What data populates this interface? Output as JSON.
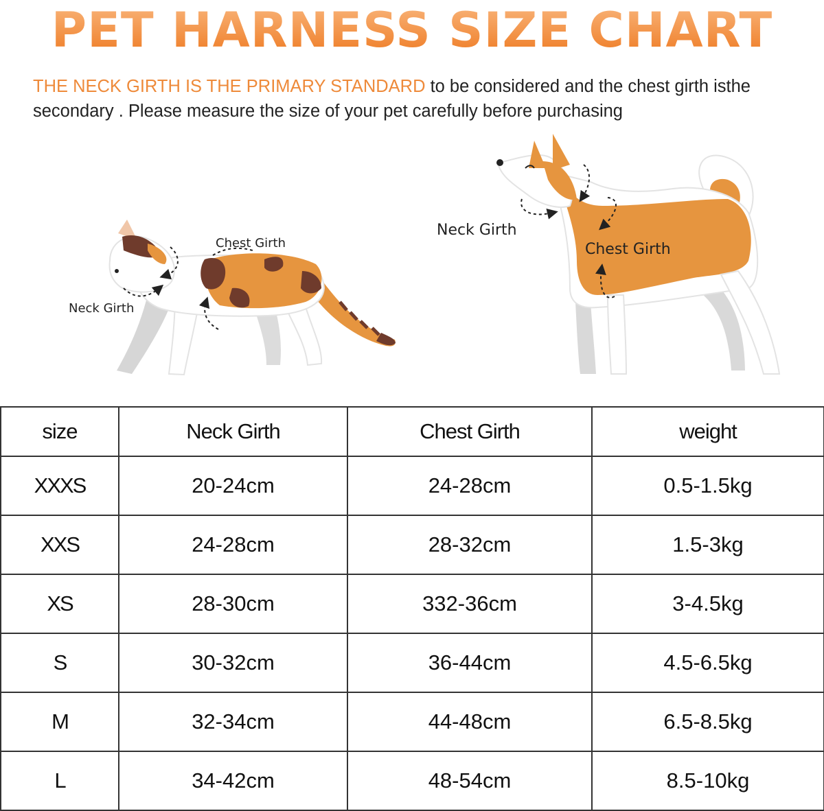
{
  "title": "PET HARNESS SIZE CHART",
  "subtitle": {
    "highlight": "THE NECK GIRTH IS THE PRIMARY STANDARD",
    "rest": " to be considered and the chest girth isthe secondary . Please measure the size of your pet carefully before purchasing"
  },
  "illustration": {
    "cat_labels": {
      "neck": "Neck  Girth",
      "chest": "Chest Girth"
    },
    "dog_labels": {
      "neck": "Neck  Girth",
      "chest": "Chest Girth"
    },
    "colors": {
      "orange": "#e6953f",
      "brown": "#6f3b2c",
      "white": "#ffffff",
      "shadow": "#d9d9d9"
    }
  },
  "table": {
    "headers": [
      "size",
      "Neck Girth",
      "Chest Girth",
      "weight"
    ],
    "rows": [
      [
        "XXXS",
        "20-24cm",
        "24-28cm",
        "0.5-1.5kg"
      ],
      [
        "XXS",
        "24-28cm",
        "28-32cm",
        "1.5-3kg"
      ],
      [
        "XS",
        "28-30cm",
        "332-36cm",
        "3-4.5kg"
      ],
      [
        "S",
        "30-32cm",
        "36-44cm",
        "4.5-6.5kg"
      ],
      [
        "M",
        "32-34cm",
        "44-48cm",
        "6.5-8.5kg"
      ],
      [
        "L",
        "34-42cm",
        "48-54cm",
        "8.5-10kg"
      ]
    ]
  }
}
